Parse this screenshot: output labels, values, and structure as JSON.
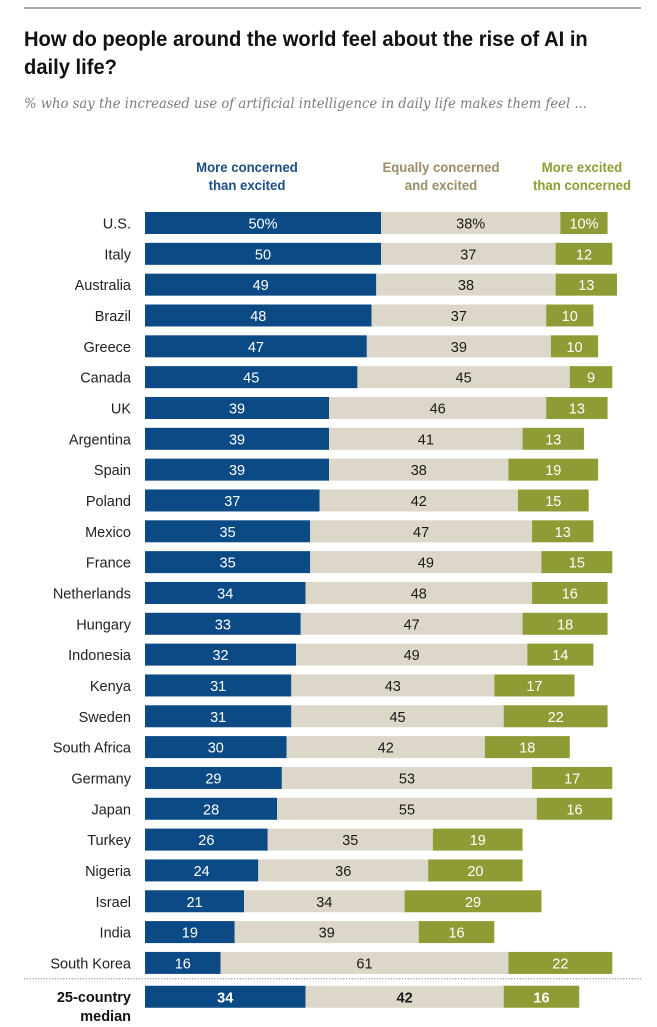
{
  "chart_data": {
    "type": "bar",
    "orientation": "horizontal",
    "stacked": true,
    "title": "How do people around the world feel about the rise of AI in daily life?",
    "subtitle": "% who say the increased use of artificial intelligence in daily life makes them feel ...",
    "xlabel": "",
    "ylabel": "",
    "xlim": [
      0,
      100
    ],
    "grid": false,
    "legend_placement": "top",
    "categories": [
      "U.S.",
      "Italy",
      "Australia",
      "Brazil",
      "Greece",
      "Canada",
      "UK",
      "Argentina",
      "Spain",
      "Poland",
      "Mexico",
      "France",
      "Netherlands",
      "Hungary",
      "Indonesia",
      "Kenya",
      "Sweden",
      "South Africa",
      "Germany",
      "Japan",
      "Turkey",
      "Nigeria",
      "Israel",
      "India",
      "South Korea"
    ],
    "series": [
      {
        "name": "More concerned than excited",
        "color": "#0b4a85",
        "label_color": "#ffffff",
        "values": [
          50,
          50,
          49,
          48,
          47,
          45,
          39,
          39,
          39,
          37,
          35,
          35,
          34,
          33,
          32,
          31,
          31,
          30,
          29,
          28,
          26,
          24,
          21,
          19,
          16
        ]
      },
      {
        "name": "Equally concerned and excited",
        "color": "#dcd7c8",
        "label_color": "#1a1a1a",
        "values": [
          38,
          37,
          38,
          37,
          39,
          45,
          46,
          41,
          38,
          42,
          47,
          49,
          48,
          47,
          49,
          43,
          45,
          42,
          53,
          55,
          35,
          36,
          34,
          39,
          61
        ]
      },
      {
        "name": "More excited than concerned",
        "color": "#8f9c35",
        "label_color": "#ffffff",
        "values": [
          10,
          12,
          13,
          10,
          10,
          9,
          13,
          13,
          19,
          15,
          13,
          15,
          16,
          18,
          14,
          17,
          22,
          18,
          17,
          16,
          19,
          20,
          29,
          16,
          22
        ]
      }
    ],
    "first_row_suffix": "%",
    "summary_row": {
      "label_line1": "25-country",
      "label_line2": "median",
      "values": [
        34,
        42,
        16
      ]
    }
  },
  "legend": [
    {
      "line1": "More concerned",
      "line2": "than excited",
      "color": "#1a4e84"
    },
    {
      "line1": "Equally concerned",
      "line2": "and excited",
      "color": "#9a8e66"
    },
    {
      "line1": "More excited",
      "line2": "than concerned",
      "color": "#8f9c35"
    }
  ]
}
